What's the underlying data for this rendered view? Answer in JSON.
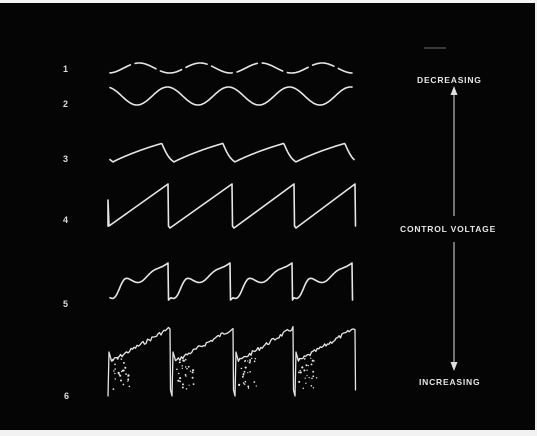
{
  "figure": {
    "background_color": "#050505",
    "trace_color": "#e6e6e6",
    "rows": [
      {
        "label": "1",
        "waveform": "sine (low amplitude, dashed)"
      },
      {
        "label": "2",
        "waveform": "sine"
      },
      {
        "label": "3",
        "waveform": "rounded sawtooth"
      },
      {
        "label": "4",
        "waveform": "sawtooth"
      },
      {
        "label": "5",
        "waveform": "sawtooth with ripple"
      },
      {
        "label": "6",
        "waveform": "noisy sawtooth"
      }
    ],
    "labels": {
      "decreasing": "DECREASING",
      "control_voltage": "CONTROL VOLTAGE",
      "increasing": "INCREASING"
    }
  }
}
